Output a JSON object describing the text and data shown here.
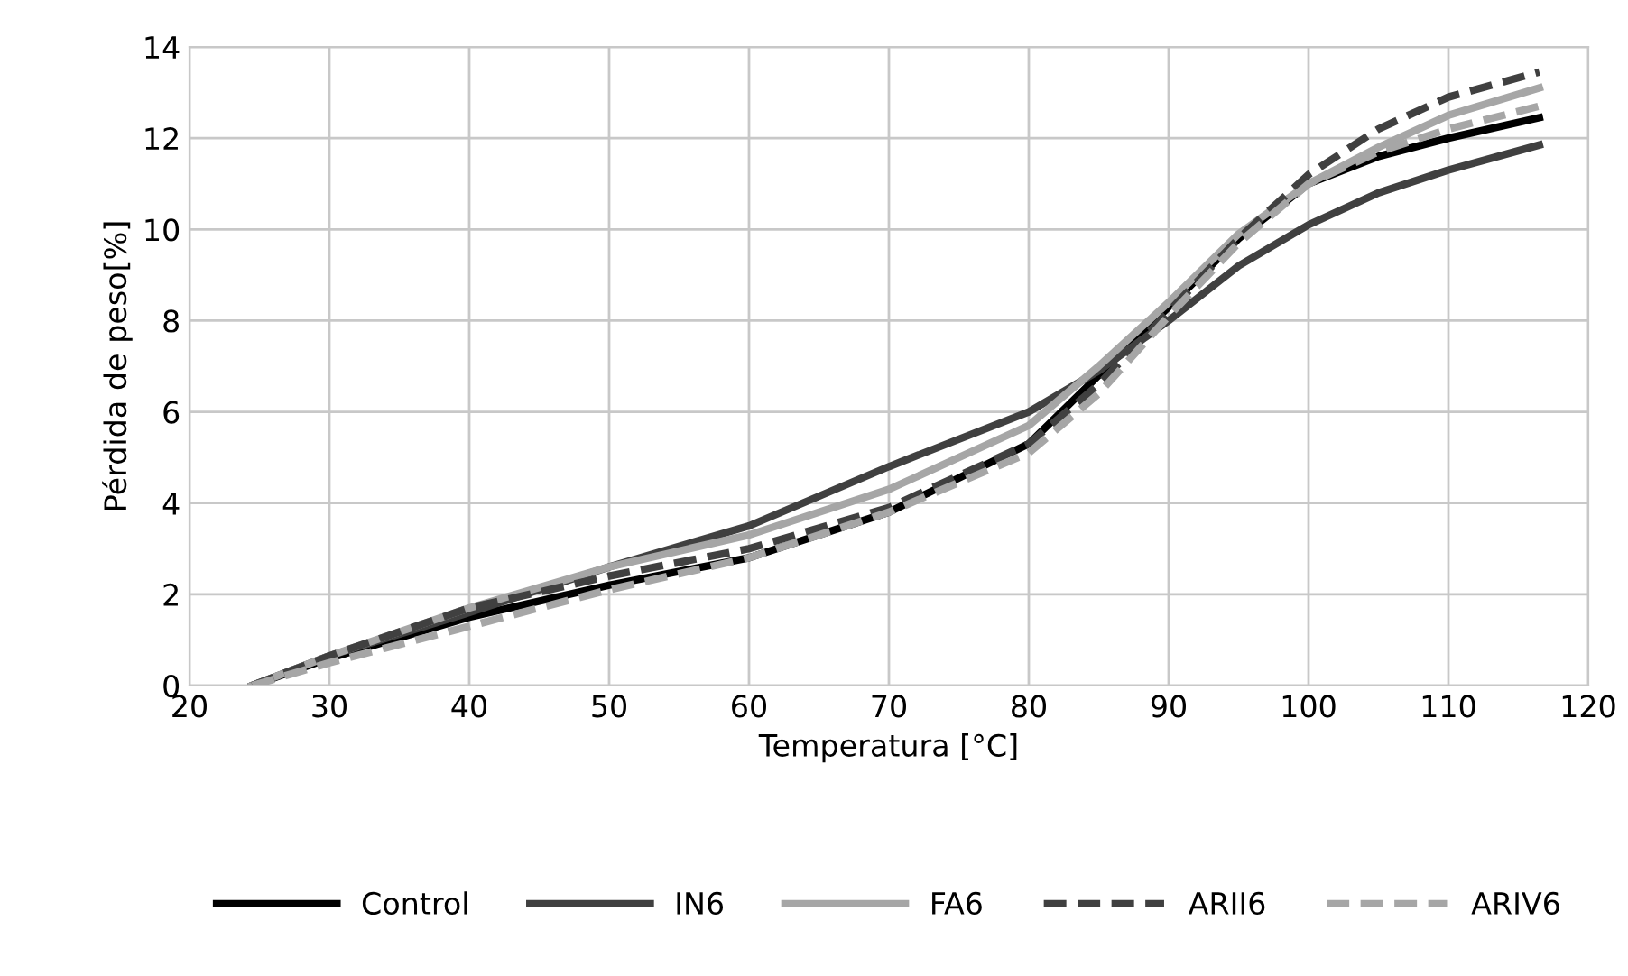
{
  "chart_data": {
    "type": "line",
    "xlabel": "Temperatura [°C]",
    "ylabel": "Pérdida de peso[%]",
    "xlim": [
      20,
      120
    ],
    "xticks": [
      20,
      30,
      40,
      50,
      60,
      70,
      80,
      90,
      100,
      110,
      120
    ],
    "ylim": [
      0,
      14
    ],
    "yticks": [
      0,
      2,
      4,
      6,
      8,
      10,
      12,
      14
    ],
    "grid": true,
    "legend": "bottom",
    "x": [
      24.5,
      30,
      40,
      50,
      60,
      70,
      80,
      85,
      90,
      95,
      100,
      105,
      110,
      116.5
    ],
    "series": [
      {
        "name": "Control",
        "color": "#000000",
        "line_style": "solid",
        "values": [
          0,
          0.6,
          1.5,
          2.2,
          2.8,
          3.8,
          5.3,
          6.8,
          8.3,
          9.8,
          11.0,
          11.6,
          12.0,
          12.45
        ]
      },
      {
        "name": "IN6",
        "color": "#404040",
        "line_style": "solid",
        "values": [
          0,
          0.65,
          1.6,
          2.6,
          3.5,
          4.8,
          6.0,
          6.9,
          8.0,
          9.2,
          10.1,
          10.8,
          11.3,
          11.85
        ]
      },
      {
        "name": "FA6",
        "color": "#a6a6a6",
        "line_style": "solid",
        "values": [
          0,
          0.65,
          1.7,
          2.6,
          3.3,
          4.3,
          5.7,
          7.0,
          8.4,
          9.9,
          11.0,
          11.8,
          12.5,
          13.1
        ]
      },
      {
        "name": "ARII6",
        "color": "#404040",
        "line_style": "dashed",
        "values": [
          0,
          0.65,
          1.7,
          2.4,
          3.0,
          3.9,
          5.3,
          6.6,
          8.2,
          9.8,
          11.2,
          12.2,
          12.9,
          13.45
        ]
      },
      {
        "name": "ARIV6",
        "color": "#a6a6a6",
        "line_style": "dashed",
        "values": [
          0,
          0.5,
          1.3,
          2.1,
          2.8,
          3.8,
          5.1,
          6.4,
          8.1,
          9.7,
          11.0,
          11.7,
          12.2,
          12.7
        ]
      }
    ]
  }
}
